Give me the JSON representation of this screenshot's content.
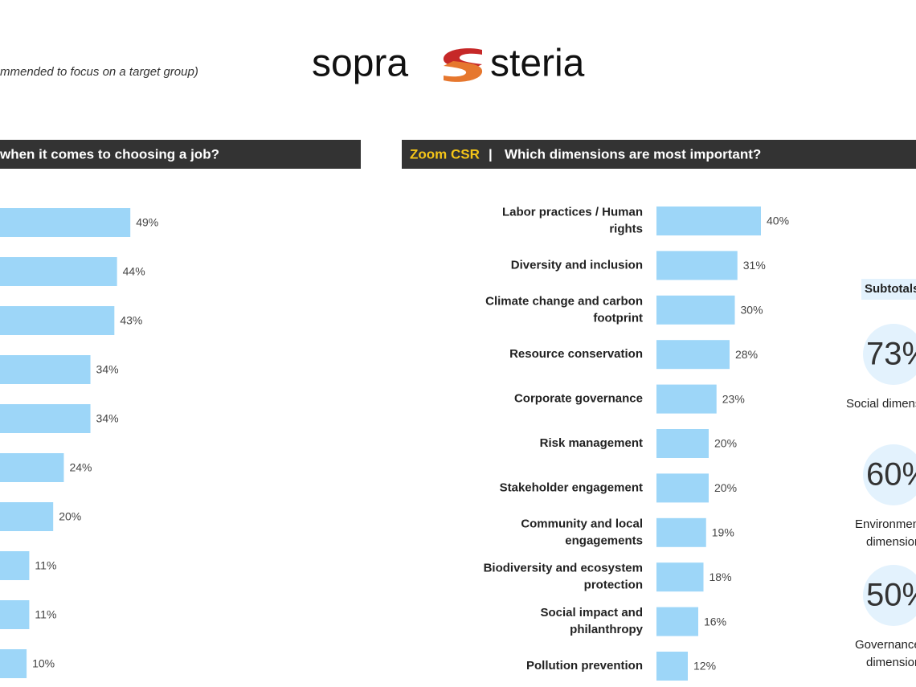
{
  "header": {
    "note": "mmended to focus on a target group)",
    "logo": [
      "sopra",
      "steria"
    ]
  },
  "chart_data": [
    {
      "type": "hbar",
      "title": "when it comes to choosing a job?",
      "categories": [
        null,
        null,
        null,
        null,
        null,
        null,
        null,
        null,
        null,
        null
      ],
      "values": [
        49,
        44,
        43,
        34,
        34,
        24,
        20,
        11,
        11,
        10
      ],
      "value_labels": [
        "49%",
        "44%",
        "43%",
        "34%",
        "34%",
        "24%",
        "20%",
        "11%",
        "11%",
        "10%"
      ],
      "color": "#9dd6f8"
    },
    {
      "type": "hbar",
      "title_prefix": "Zoom CSR",
      "title_separator": "|",
      "title": "Which dimensions are most important?",
      "categories": [
        "Labor practices / Human rights",
        "Diversity and inclusion",
        "Climate change and carbon footprint",
        "Resource conservation",
        "Corporate governance",
        "Risk management",
        "Stakeholder engagement",
        "Community and local engagements",
        "Biodiversity and ecosystem protection",
        "Social impact and philanthropy",
        "Pollution prevention"
      ],
      "values": [
        40,
        31,
        30,
        28,
        23,
        20,
        20,
        19,
        18,
        16,
        12
      ],
      "value_labels": [
        "40%",
        "31%",
        "30%",
        "28%",
        "23%",
        "20%",
        "20%",
        "19%",
        "18%",
        "16%",
        "12%"
      ],
      "color": "#9dd6f8"
    }
  ],
  "subtotals": {
    "title": "Subtotals",
    "items": [
      {
        "value": 73,
        "label": "73%",
        "caption": [
          "Social dimension"
        ]
      },
      {
        "value": 60,
        "label": "60%",
        "caption": [
          "Environmental",
          "dimension"
        ]
      },
      {
        "value": 50,
        "label": "50%",
        "caption": [
          "Governance",
          "dimension"
        ]
      }
    ]
  }
}
